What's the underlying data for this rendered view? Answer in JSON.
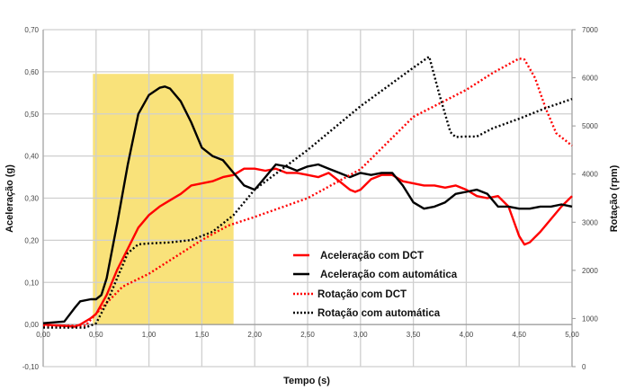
{
  "chart_data": {
    "type": "line",
    "xlabel": "Tempo (s)",
    "ylabel": "Aceleração (g)",
    "y2label": "Rotação (rpm)",
    "xlim": [
      0,
      5
    ],
    "ylim": [
      -0.1,
      0.7
    ],
    "y2lim": [
      0,
      7000
    ],
    "grid": true,
    "legend_position": "center-right",
    "xticks": [
      "0,00",
      "0,50",
      "1,00",
      "1,50",
      "2,00",
      "2,50",
      "3,00",
      "3,50",
      "4,00",
      "4,50",
      "5,00"
    ],
    "yticks": [
      "-0,10",
      "0,00",
      "0,10",
      "0,20",
      "0,30",
      "0,40",
      "0,50",
      "0,60",
      "0,70"
    ],
    "y2ticks": [
      "0",
      "1000",
      "2000",
      "3000",
      "4000",
      "5000",
      "6000",
      "7000"
    ],
    "highlight": {
      "x": [
        0.47,
        1.8
      ],
      "y": [
        0,
        0.595
      ],
      "color": "#f9e27a"
    },
    "series": [
      {
        "name": "Aceleração com DCT",
        "axis": "left",
        "color": "#ff0000",
        "style": "solid",
        "x": [
          0,
          0.3,
          0.35,
          0.45,
          0.5,
          0.6,
          0.7,
          0.8,
          0.9,
          1.0,
          1.1,
          1.2,
          1.3,
          1.4,
          1.5,
          1.6,
          1.7,
          1.8,
          1.9,
          2.0,
          2.1,
          2.2,
          2.3,
          2.4,
          2.5,
          2.6,
          2.7,
          2.8,
          2.9,
          2.95,
          3.0,
          3.1,
          3.2,
          3.3,
          3.4,
          3.5,
          3.6,
          3.7,
          3.8,
          3.9,
          4.0,
          4.1,
          4.2,
          4.3,
          4.4,
          4.5,
          4.55,
          4.6,
          4.7,
          4.8,
          4.9,
          5.0
        ],
        "y": [
          0,
          -0.005,
          0,
          0.015,
          0.025,
          0.07,
          0.13,
          0.18,
          0.23,
          0.26,
          0.28,
          0.295,
          0.31,
          0.33,
          0.335,
          0.34,
          0.35,
          0.355,
          0.37,
          0.37,
          0.365,
          0.37,
          0.36,
          0.36,
          0.355,
          0.35,
          0.36,
          0.34,
          0.32,
          0.315,
          0.32,
          0.345,
          0.355,
          0.355,
          0.34,
          0.335,
          0.33,
          0.33,
          0.325,
          0.33,
          0.32,
          0.305,
          0.3,
          0.305,
          0.28,
          0.21,
          0.19,
          0.195,
          0.22,
          0.25,
          0.28,
          0.305
        ]
      },
      {
        "name": "Aceleração com automática",
        "axis": "left",
        "color": "#000000",
        "style": "solid",
        "x": [
          0,
          0.2,
          0.3,
          0.35,
          0.45,
          0.5,
          0.55,
          0.6,
          0.7,
          0.8,
          0.9,
          1.0,
          1.1,
          1.15,
          1.2,
          1.3,
          1.4,
          1.5,
          1.6,
          1.7,
          1.8,
          1.9,
          2.0,
          2.1,
          2.2,
          2.3,
          2.4,
          2.5,
          2.6,
          2.7,
          2.8,
          2.9,
          3.0,
          3.1,
          3.2,
          3.3,
          3.4,
          3.5,
          3.6,
          3.7,
          3.8,
          3.9,
          4.0,
          4.1,
          4.2,
          4.3,
          4.4,
          4.5,
          4.6,
          4.7,
          4.8,
          4.9,
          5.0
        ],
        "y": [
          0.003,
          0.007,
          0.04,
          0.055,
          0.06,
          0.06,
          0.07,
          0.11,
          0.24,
          0.38,
          0.5,
          0.545,
          0.562,
          0.565,
          0.56,
          0.53,
          0.48,
          0.42,
          0.4,
          0.39,
          0.36,
          0.33,
          0.32,
          0.35,
          0.38,
          0.375,
          0.365,
          0.375,
          0.38,
          0.37,
          0.36,
          0.35,
          0.36,
          0.355,
          0.36,
          0.36,
          0.33,
          0.29,
          0.275,
          0.28,
          0.29,
          0.31,
          0.315,
          0.32,
          0.31,
          0.28,
          0.28,
          0.275,
          0.275,
          0.28,
          0.28,
          0.285,
          0.28
        ]
      },
      {
        "name": "Rotação com DCT",
        "axis": "right",
        "color": "#ff0000",
        "style": "dotted",
        "x": [
          0,
          0.4,
          0.5,
          0.75,
          1.0,
          1.5,
          1.75,
          2.0,
          2.5,
          3.0,
          3.5,
          4.0,
          4.25,
          4.5,
          4.55,
          4.65,
          4.75,
          4.85,
          5.0
        ],
        "y": [
          850,
          850,
          1100,
          1660,
          1930,
          2630,
          2930,
          3110,
          3500,
          4100,
          5190,
          5750,
          6100,
          6400,
          6380,
          6000,
          5370,
          4850,
          4590
        ]
      },
      {
        "name": "Rotação com automática",
        "axis": "right",
        "color": "#000000",
        "style": "dotted",
        "x": [
          0,
          0.4,
          0.5,
          0.6,
          0.7,
          0.8,
          0.9,
          1.0,
          1.2,
          1.4,
          1.6,
          1.8,
          2.0,
          2.5,
          3.0,
          3.5,
          3.65,
          3.75,
          3.85,
          3.9,
          4.0,
          4.1,
          4.25,
          4.5,
          4.75,
          5.0
        ],
        "y": [
          810,
          810,
          900,
          1320,
          1840,
          2360,
          2540,
          2560,
          2580,
          2630,
          2800,
          3150,
          3680,
          4500,
          5410,
          6210,
          6440,
          5620,
          4870,
          4770,
          4780,
          4780,
          4950,
          5150,
          5370,
          5560
        ]
      }
    ]
  }
}
